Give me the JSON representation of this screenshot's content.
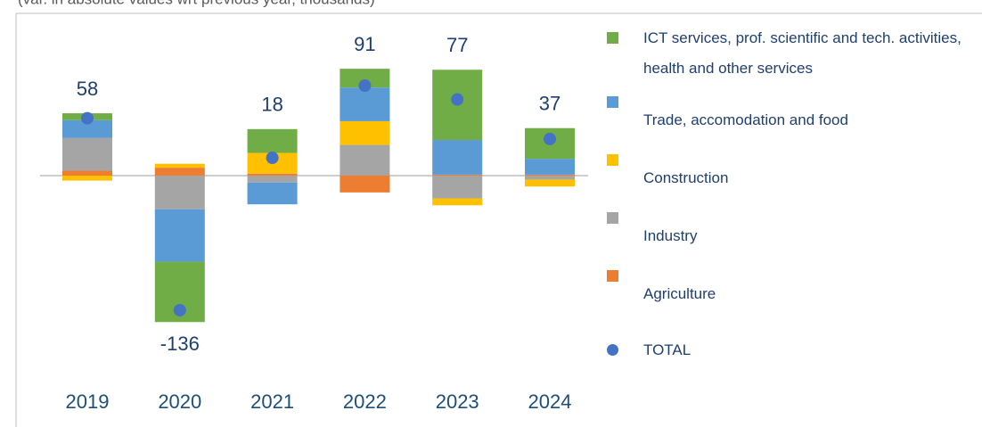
{
  "chart_data": {
    "type": "bar",
    "stacked": true,
    "subtitle": "(var. in absolute values wrt previous year, thousands)",
    "categories": [
      "2019",
      "2020",
      "2021",
      "2022",
      "2023",
      "2024"
    ],
    "series": [
      {
        "name": "ICT services, prof. scientific and tech. activities, health and other services",
        "color": "#70ad47",
        "values": [
          7,
          -61,
          24,
          19,
          71,
          31
        ]
      },
      {
        "name": "Trade, accomodation and food",
        "color": "#5b9bd5",
        "values": [
          18,
          -53,
          -22,
          34,
          35,
          16
        ]
      },
      {
        "name": "Construction",
        "color": "#ffc000",
        "values": [
          -5,
          4,
          21,
          24,
          -7,
          -7
        ]
      },
      {
        "name": "Industry",
        "color": "#a5a5a5",
        "values": [
          33,
          -34,
          -7,
          31,
          -23,
          -4
        ]
      },
      {
        "name": "Agriculture",
        "color": "#ed7d31",
        "values": [
          5,
          8,
          2,
          -17,
          1,
          1
        ]
      }
    ],
    "totals": {
      "name": "TOTAL",
      "color": "#4472c4",
      "values": [
        58,
        -136,
        18,
        91,
        77,
        37
      ]
    }
  }
}
